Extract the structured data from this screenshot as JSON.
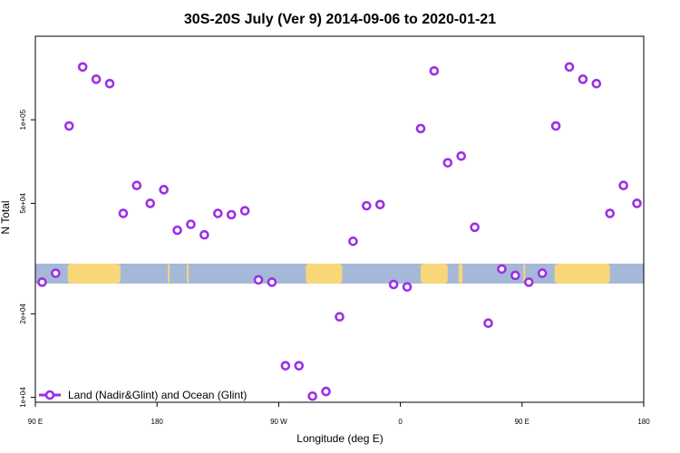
{
  "chart_data": {
    "type": "scatter",
    "title": "30S-20S July (Ver 9)   2014-09-06 to 2020-01-21",
    "xlabel": "Longitude (deg E)",
    "ylabel": "N Total",
    "x_axis": {
      "range_deg": [
        90,
        540
      ],
      "ticks": [
        {
          "value": 90,
          "label": "90 E"
        },
        {
          "value": 180,
          "label": "180"
        },
        {
          "value": 270,
          "label": "90 W"
        },
        {
          "value": 360,
          "label": "0"
        },
        {
          "value": 450,
          "label": "90 E"
        },
        {
          "value": 540,
          "label": "180"
        }
      ]
    },
    "y_axis": {
      "scale": "log",
      "range": [
        9600,
        200000
      ],
      "ticks": [
        {
          "value": 10000,
          "label": "1e+04"
        },
        {
          "value": 20000,
          "label": "2e+04"
        },
        {
          "value": 50000,
          "label": "5e+04"
        },
        {
          "value": 100000,
          "label": "1e+05"
        }
      ]
    },
    "grid": false,
    "legend": {
      "position": "bottom-left",
      "entries": [
        "Land (Nadir&Glint) and Ocean (Glint)"
      ]
    },
    "series": [
      {
        "name": "Land (Nadir&Glint) and Ocean (Glint)",
        "color": "#9B30E6",
        "marker": "open-circle",
        "points": [
          [
            95,
            26000
          ],
          [
            105,
            28000
          ],
          [
            115,
            95000
          ],
          [
            125,
            155000
          ],
          [
            135,
            140000
          ],
          [
            145,
            135000
          ],
          [
            155,
            46000
          ],
          [
            165,
            58000
          ],
          [
            175,
            50000
          ],
          [
            185,
            56000
          ],
          [
            195,
            40000
          ],
          [
            205,
            42000
          ],
          [
            215,
            38500
          ],
          [
            225,
            46000
          ],
          [
            235,
            45500
          ],
          [
            245,
            47000
          ],
          [
            255,
            26500
          ],
          [
            265,
            26000
          ],
          [
            275,
            13000
          ],
          [
            285,
            13000
          ],
          [
            295,
            10100
          ],
          [
            305,
            10500
          ],
          [
            315,
            19500
          ],
          [
            325,
            36500
          ],
          [
            335,
            49000
          ],
          [
            345,
            49500
          ],
          [
            355,
            25500
          ],
          [
            365,
            25000
          ],
          [
            375,
            93000
          ],
          [
            385,
            150000
          ],
          [
            395,
            70000
          ],
          [
            405,
            74000
          ],
          [
            415,
            41000
          ],
          [
            425,
            18500
          ],
          [
            435,
            29000
          ],
          [
            445,
            27500
          ],
          [
            455,
            26000
          ],
          [
            465,
            28000
          ],
          [
            475,
            95000
          ],
          [
            485,
            155000
          ],
          [
            495,
            140000
          ],
          [
            505,
            135000
          ],
          [
            515,
            46000
          ],
          [
            525,
            58000
          ],
          [
            535,
            50000
          ]
        ]
      }
    ],
    "map_strip": {
      "ocean_color": "#A6B8D8",
      "land_color": "#F7D777",
      "land_spans_deg": [
        [
          114,
          153
        ],
        [
          188,
          189
        ],
        [
          290,
          317
        ],
        [
          375,
          395
        ],
        [
          403,
          406
        ],
        [
          202,
          203
        ],
        [
          451,
          451
        ],
        [
          474,
          515
        ]
      ]
    }
  }
}
